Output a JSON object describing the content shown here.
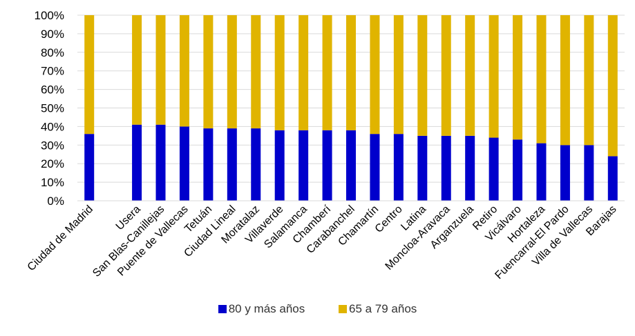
{
  "chart_data": {
    "type": "bar",
    "stacked": true,
    "percent": true,
    "title": "",
    "xlabel": "",
    "ylabel": "",
    "ylim": [
      0,
      100
    ],
    "yticks": [
      "0%",
      "10%",
      "20%",
      "30%",
      "40%",
      "50%",
      "60%",
      "70%",
      "80%",
      "90%",
      "100%"
    ],
    "grid": true,
    "legend_position": "bottom",
    "categories": [
      "Ciudad de Madrid",
      "",
      "Usera",
      "San Blas-Canillejas",
      "Puente de Vallecas",
      "Tetuán",
      "Ciudad Lineal",
      "Moratalaz",
      "Villaverde",
      "Salamanca",
      "Chamberí",
      "Carabanchel",
      "Chamartín",
      "Centro",
      "Latina",
      "Moncloa-Aravaca",
      "Arganzuela",
      "Retiro",
      "Vicálvaro",
      "Hortaleza",
      "Fuencarral-El Pardo",
      "Villa de Vallecas",
      "Barajas"
    ],
    "series": [
      {
        "name": "80 y más años",
        "color": "#0000cc",
        "values": [
          36,
          null,
          41,
          41,
          40,
          39,
          39,
          39,
          38,
          38,
          38,
          38,
          36,
          36,
          35,
          35,
          35,
          34,
          33,
          31,
          30,
          30,
          24
        ]
      },
      {
        "name": "65 a 79 años",
        "color": "#e0b400",
        "values": [
          64,
          null,
          59,
          59,
          60,
          61,
          61,
          61,
          62,
          62,
          62,
          62,
          64,
          64,
          65,
          65,
          65,
          66,
          67,
          69,
          70,
          70,
          76
        ]
      }
    ]
  }
}
